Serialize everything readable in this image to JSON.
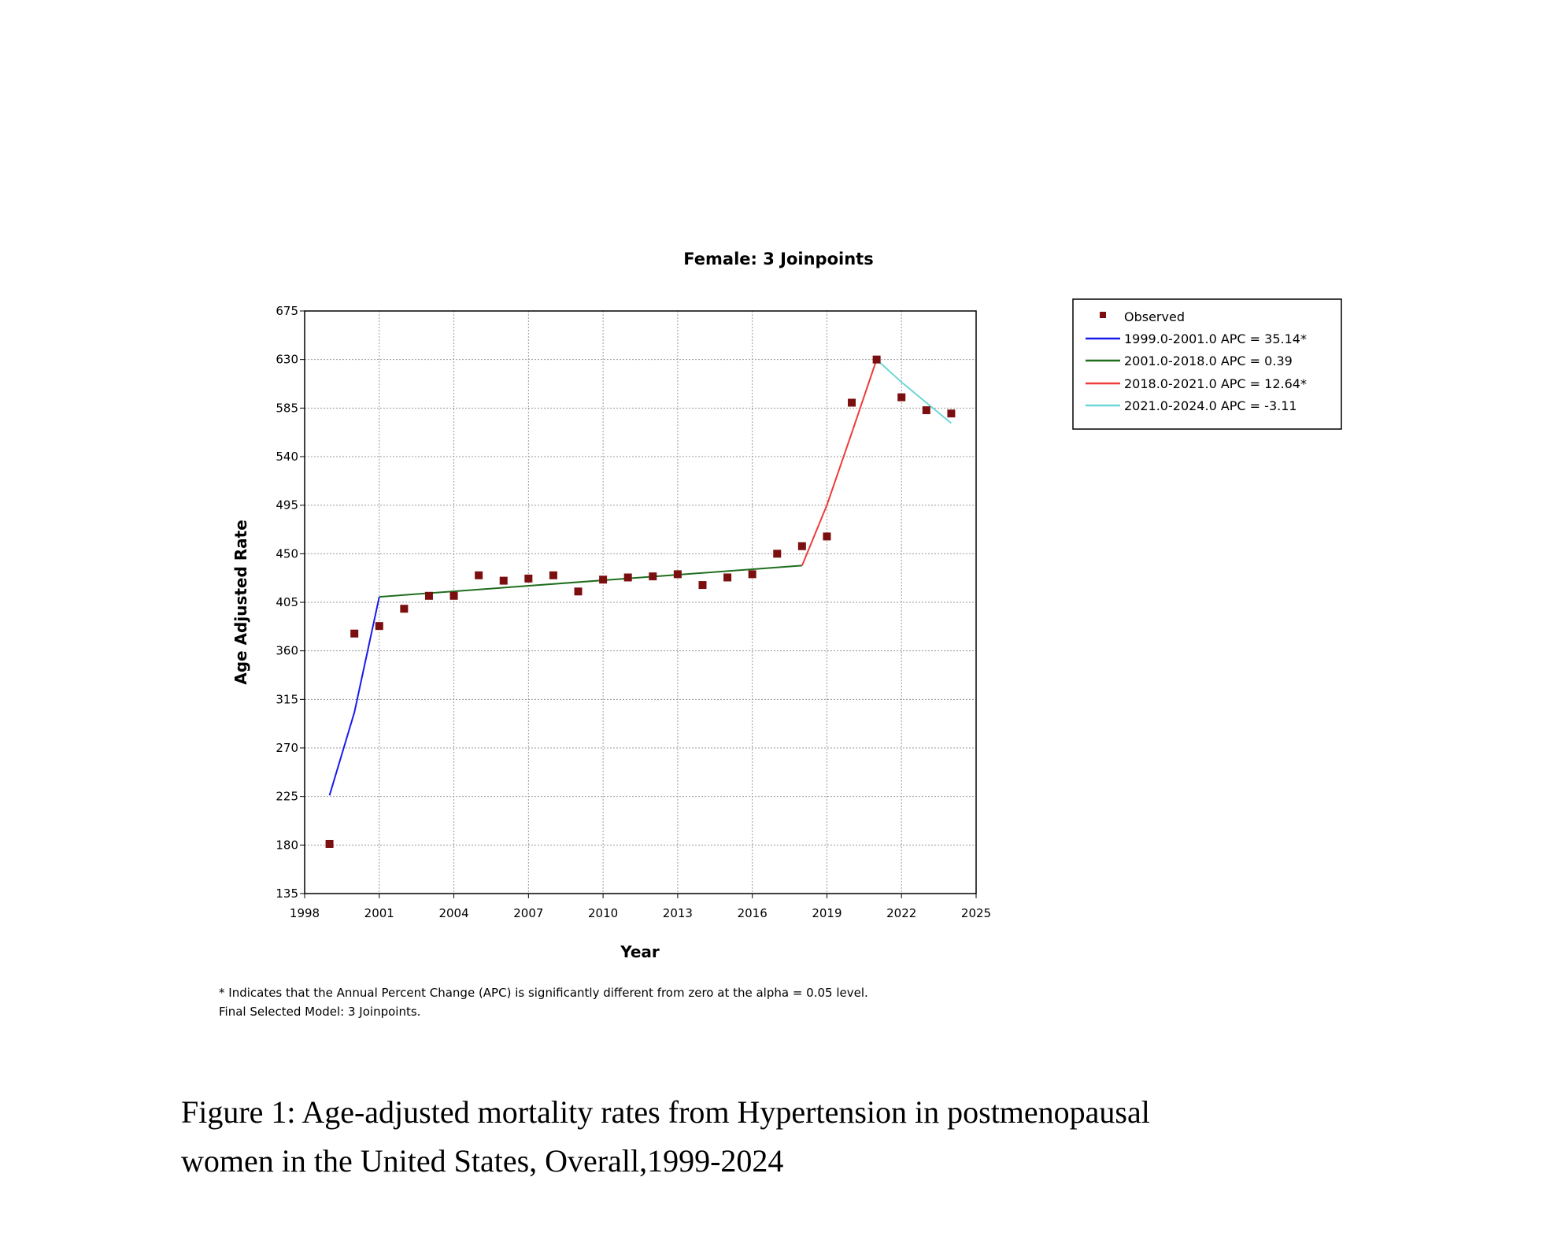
{
  "chart_data": {
    "type": "scatter",
    "title": "Female: 3 Joinpoints",
    "xlabel": "Year",
    "ylabel": "Age Adjusted Rate",
    "xlim": [
      1998,
      2025
    ],
    "ylim": [
      135,
      675
    ],
    "x_ticks": [
      "1998",
      "2001",
      "2004",
      "2007",
      "2010",
      "2013",
      "2016",
      "2019",
      "2022",
      "2025"
    ],
    "y_ticks": [
      "675",
      "630",
      "585",
      "540",
      "495",
      "450",
      "405",
      "360",
      "315",
      "270",
      "225",
      "180",
      "135"
    ],
    "grid": true,
    "legend_position": "right",
    "observed": {
      "name": "Observed",
      "color": "#7b0f0f",
      "x": [
        1999,
        2000,
        2001,
        2002,
        2003,
        2004,
        2005,
        2006,
        2007,
        2008,
        2009,
        2010,
        2011,
        2012,
        2013,
        2014,
        2015,
        2016,
        2017,
        2018,
        2019,
        2020,
        2021,
        2022,
        2023,
        2024
      ],
      "y": [
        181,
        376,
        383,
        399,
        411,
        411,
        430,
        425,
        427,
        430,
        415,
        426,
        428,
        429,
        431,
        421,
        428,
        431,
        450,
        457,
        466,
        590,
        630,
        595,
        583,
        580
      ]
    },
    "series": [
      {
        "name": "1999.0-2001.0 APC  =  35.14*",
        "color": "#1a1aee",
        "x": [
          1999,
          2000,
          2001
        ],
        "y": [
          226,
          303,
          410
        ]
      },
      {
        "name": "2001.0-2018.0 APC  =  0.39",
        "color": "#1e6e1e",
        "x": [
          2001,
          2018
        ],
        "y": [
          410,
          439
        ]
      },
      {
        "name": "2018.0-2021.0 APC  =  12.64*",
        "color": "#ee3a3a",
        "x": [
          2018,
          2019,
          2020,
          2021
        ],
        "y": [
          439,
          495,
          562,
          630
        ]
      },
      {
        "name": "2021.0-2024.0 APC  =  -3.11",
        "color": "#6fd6d6",
        "x": [
          2021,
          2022,
          2023,
          2024
        ],
        "y": [
          630,
          609,
          590,
          571
        ]
      }
    ],
    "footnotes": [
      "* Indicates that the Annual Percent Change (APC) is significantly different from zero at the alpha = 0.05 level.",
      "Final Selected Model: 3 Joinpoints."
    ]
  },
  "caption": {
    "line1": "Figure 1: Age-adjusted mortality rates from Hypertension in postmenopausal",
    "line2": "women in the United States, Overall,1999-2024"
  }
}
